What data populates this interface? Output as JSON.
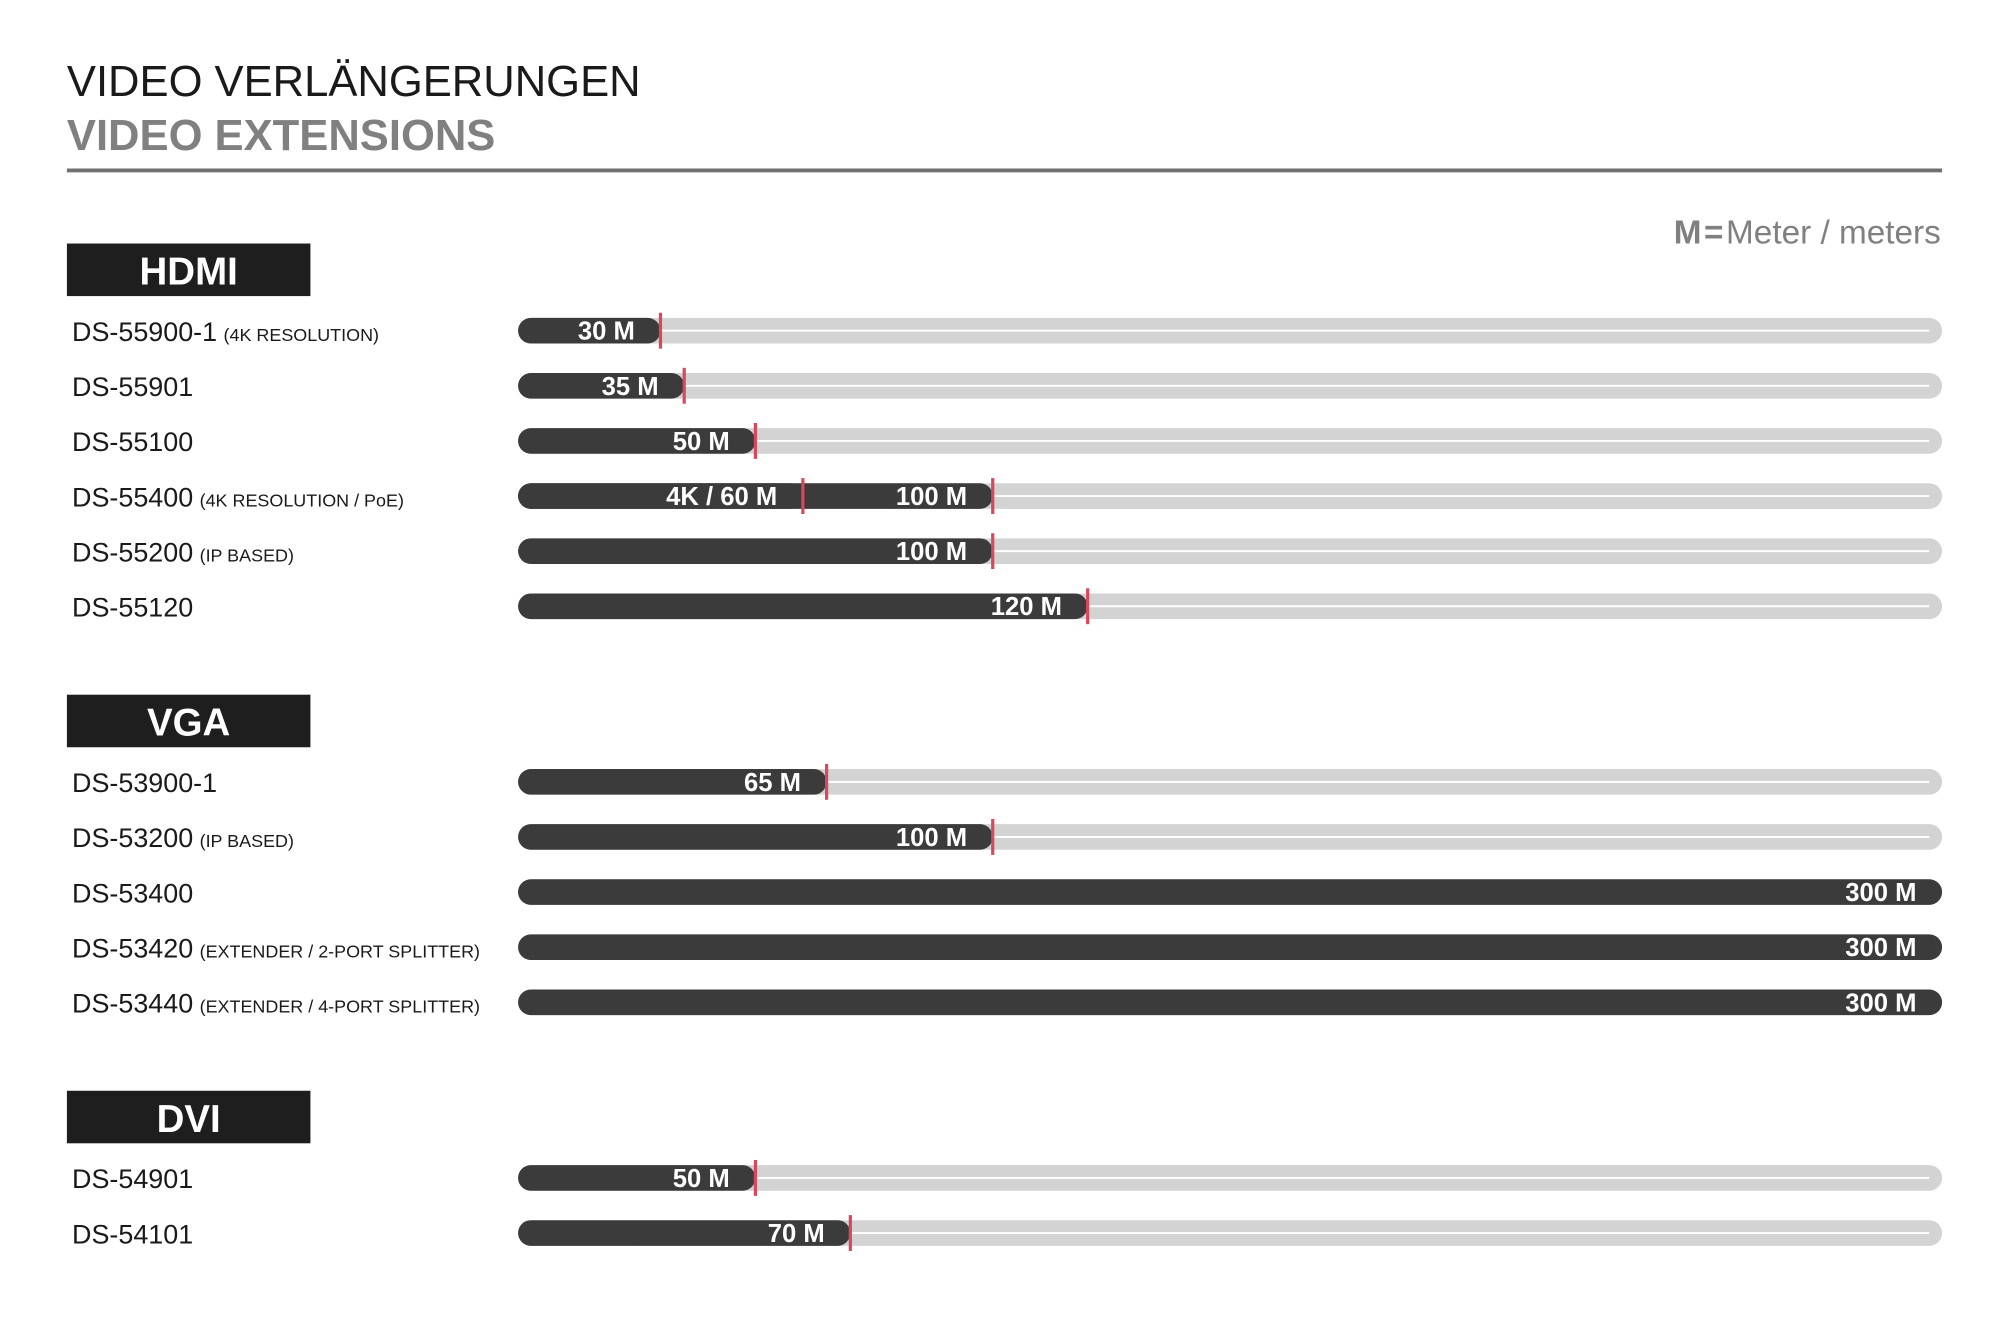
{
  "chart_data": {
    "type": "bar",
    "title": "VIDEO VERLÄNGERUNGEN",
    "subtitle": "VIDEO EXTENSIONS",
    "unit_note": {
      "symbol": "M",
      "equals": "=",
      "text": "Meter / meters"
    },
    "xlim": [
      0,
      300
    ],
    "bar_color": "#3b3b3b",
    "track_color": "#d3d3d3",
    "marker_color": "#d8475c",
    "header_color": "#1e1e1e",
    "groups": [
      {
        "name": "HDMI",
        "items": [
          {
            "model": "DS-55900-1",
            "note": "(4K RESOLUTION)",
            "values": [
              30
            ],
            "value_labels": [
              "30 M"
            ]
          },
          {
            "model": "DS-55901",
            "values": [
              35
            ],
            "value_labels": [
              "35 M"
            ]
          },
          {
            "model": "DS-55100",
            "values": [
              50
            ],
            "value_labels": [
              "50 M"
            ]
          },
          {
            "model": "DS-55400",
            "note": "(4K RESOLUTION / PoE)",
            "values": [
              60,
              100
            ],
            "value_labels": [
              "4K / 60 M",
              "100 M"
            ]
          },
          {
            "model": "DS-55200",
            "note": "(IP BASED)",
            "values": [
              100
            ],
            "value_labels": [
              "100 M"
            ]
          },
          {
            "model": "DS-55120",
            "values": [
              120
            ],
            "value_labels": [
              "120 M"
            ]
          }
        ]
      },
      {
        "name": "VGA",
        "items": [
          {
            "model": "DS-53900-1",
            "values": [
              65
            ],
            "value_labels": [
              "65 M"
            ]
          },
          {
            "model": "DS-53200",
            "note": "(IP BASED)",
            "values": [
              100
            ],
            "value_labels": [
              "100 M"
            ]
          },
          {
            "model": "DS-53400",
            "values": [
              300
            ],
            "value_labels": [
              "300 M"
            ]
          },
          {
            "model": "DS-53420",
            "note": "(EXTENDER / 2-PORT SPLITTER)",
            "values": [
              300
            ],
            "value_labels": [
              "300 M"
            ]
          },
          {
            "model": "DS-53440",
            "note": "(EXTENDER / 4-PORT SPLITTER)",
            "values": [
              300
            ],
            "value_labels": [
              "300 M"
            ]
          }
        ]
      },
      {
        "name": "DVI",
        "items": [
          {
            "model": "DS-54901",
            "values": [
              50
            ],
            "value_labels": [
              "50 M"
            ]
          },
          {
            "model": "DS-54101",
            "values": [
              70
            ],
            "value_labels": [
              "70 M"
            ]
          }
        ]
      }
    ]
  }
}
